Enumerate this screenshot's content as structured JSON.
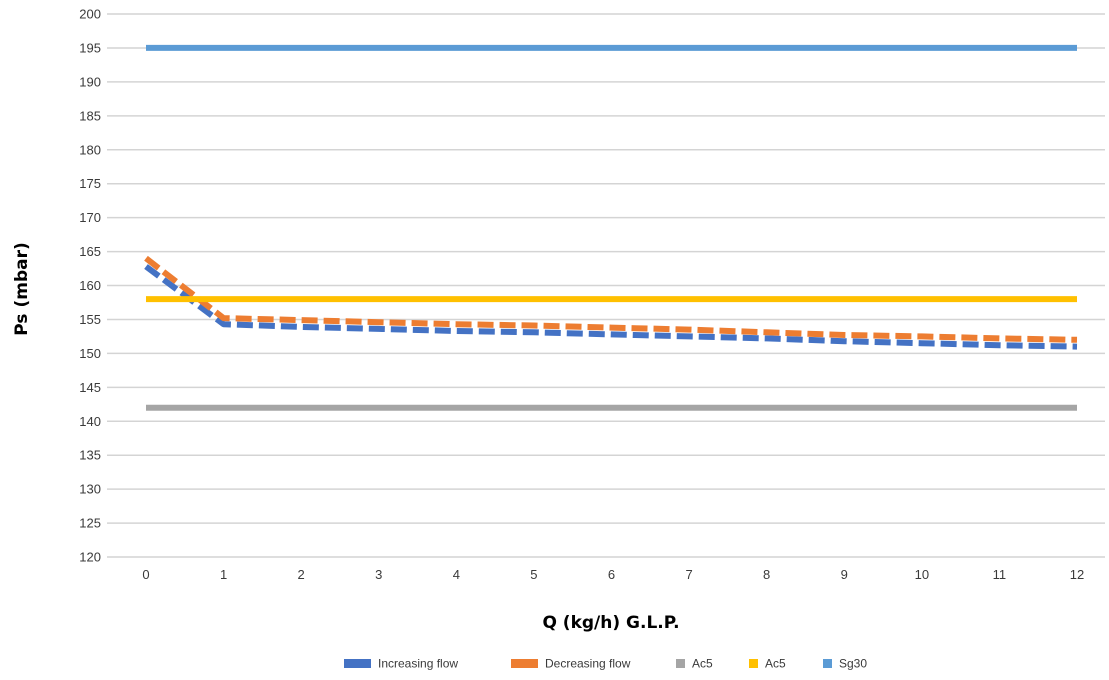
{
  "chart_data": {
    "type": "line",
    "title": "",
    "xlabel": "Q (kg/h) G.L.P.",
    "ylabel": "Ps (mbar)",
    "x": [
      0,
      1,
      2,
      3,
      4,
      5,
      6,
      7,
      8,
      9,
      10,
      11,
      12
    ],
    "xlim": [
      0,
      12
    ],
    "ylim": [
      120,
      200
    ],
    "ytick_step": 5,
    "grid": "horizontal",
    "legend_position": "bottom",
    "series": [
      {
        "name": "Increasing flow",
        "color": "#4472C4",
        "style": "dashed",
        "values": [
          162.8,
          154.3,
          153.9,
          153.6,
          153.3,
          153.1,
          152.8,
          152.5,
          152.2,
          151.8,
          151.5,
          151.2,
          151.0
        ]
      },
      {
        "name": "Decreasing  flow",
        "color": "#ED7D31",
        "style": "dashed",
        "values": [
          164.0,
          155.2,
          154.9,
          154.6,
          154.3,
          154.1,
          153.8,
          153.5,
          153.1,
          152.7,
          152.5,
          152.2,
          152.0
        ]
      },
      {
        "name": "Ac5",
        "color": "#A5A5A5",
        "style": "solid",
        "values": [
          142,
          142,
          142,
          142,
          142,
          142,
          142,
          142,
          142,
          142,
          142,
          142,
          142
        ]
      },
      {
        "name": "Ac5",
        "color": "#FFC000",
        "style": "solid",
        "values": [
          158,
          158,
          158,
          158,
          158,
          158,
          158,
          158,
          158,
          158,
          158,
          158,
          158
        ]
      },
      {
        "name": "Sg30",
        "color": "#5B9BD5",
        "style": "solid",
        "values": [
          195,
          195,
          195,
          195,
          195,
          195,
          195,
          195,
          195,
          195,
          195,
          195,
          195
        ]
      }
    ]
  }
}
